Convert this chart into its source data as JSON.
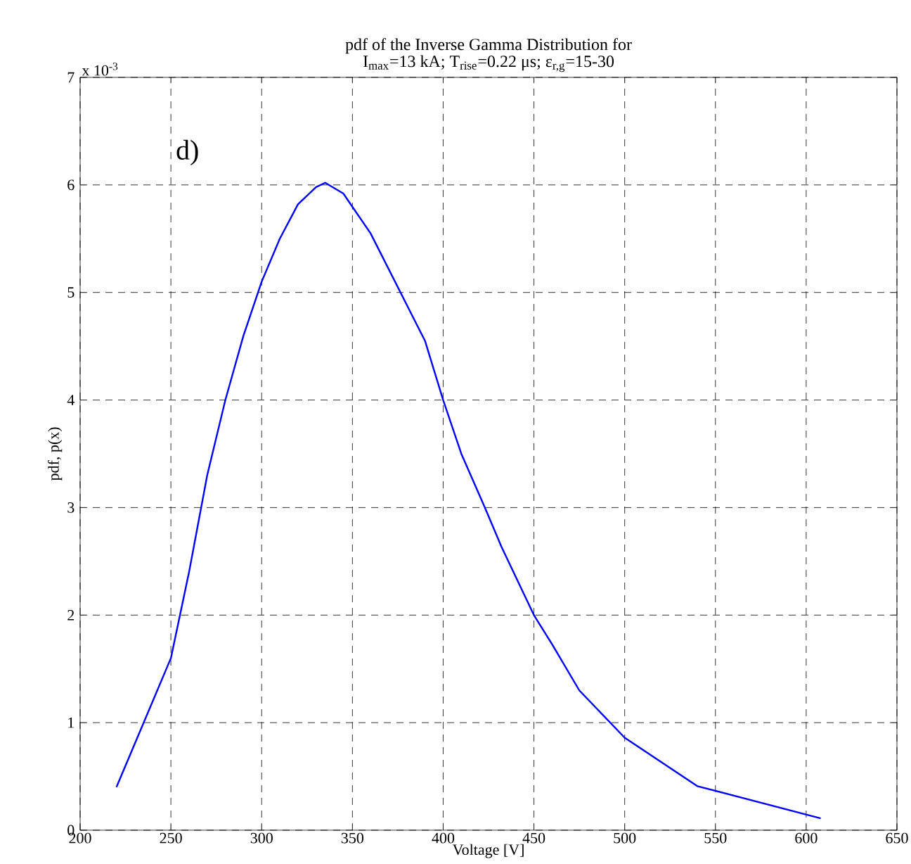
{
  "chart_data": {
    "type": "line",
    "title": "pdf of the Inverse Gamma Distribution for",
    "subtitle": "I$_{max}$=13 kA; T$_{rise}$=0.22 μs; ε$_{r,g}$=15-30",
    "xlabel": "Voltage [V]",
    "ylabel": "pdf, p(x)",
    "annotations": [
      "d)",
      "x 10$^{-3}$"
    ],
    "x": [
      220,
      250,
      260,
      270,
      280,
      290,
      300,
      310,
      320,
      330,
      335,
      345,
      360,
      375,
      390,
      400,
      410,
      423,
      432,
      450,
      460,
      475,
      500,
      540,
      608
    ],
    "series": [
      {
        "color": "#0000ff",
        "values": [
          0.4,
          1.6,
          2.4,
          3.3,
          4.0,
          4.6,
          5.1,
          5.5,
          5.82,
          5.98,
          6.02,
          5.92,
          5.55,
          5.05,
          4.55,
          4.0,
          3.5,
          3.0,
          2.64,
          2.0,
          1.73,
          1.3,
          0.86,
          0.41,
          0.11
        ]
      }
    ],
    "xlim": [
      200,
      650
    ],
    "xticks": [
      200,
      250,
      300,
      350,
      400,
      450,
      500,
      550,
      600,
      650
    ],
    "ylim": [
      0,
      7
    ],
    "yticks": [
      0,
      1,
      2,
      3,
      4,
      5,
      6,
      7
    ],
    "grid": true,
    "marker": "none",
    "line_style": "solid"
  }
}
